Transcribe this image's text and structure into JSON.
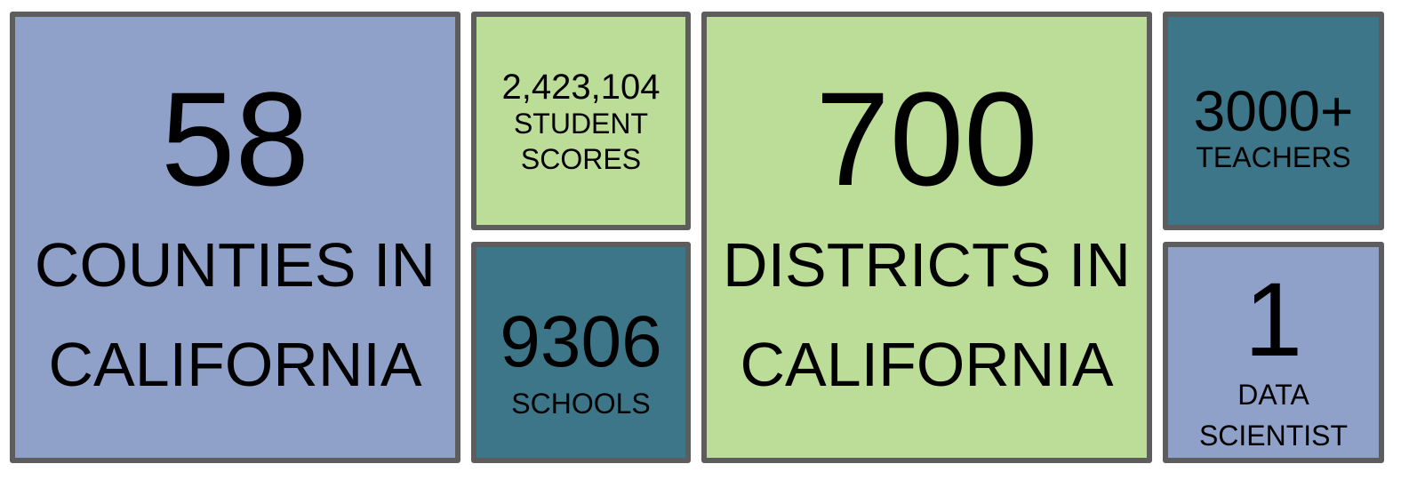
{
  "tiles": {
    "counties": {
      "value": "58",
      "label_line1": "COUNTIES IN",
      "label_line2": "CALIFORNIA",
      "color": "#8fa1c8"
    },
    "scores": {
      "value": "2,423,104",
      "label_line1": "STUDENT",
      "label_line2": "SCORES",
      "color": "#bcdd97"
    },
    "schools": {
      "value": "9306",
      "label": "SCHOOLS",
      "color": "#3d7688"
    },
    "districts": {
      "value": "700",
      "label_line1": "DISTRICTS IN",
      "label_line2": "CALIFORNIA",
      "color": "#bcdd97"
    },
    "teachers": {
      "value": "3000+",
      "label": "TEACHERS",
      "color": "#3d7688"
    },
    "data_scientist": {
      "value": "1",
      "label_line1": "DATA",
      "label_line2": "SCIENTIST",
      "color": "#8fa1c8"
    }
  },
  "border_color": "#5d5d5d"
}
